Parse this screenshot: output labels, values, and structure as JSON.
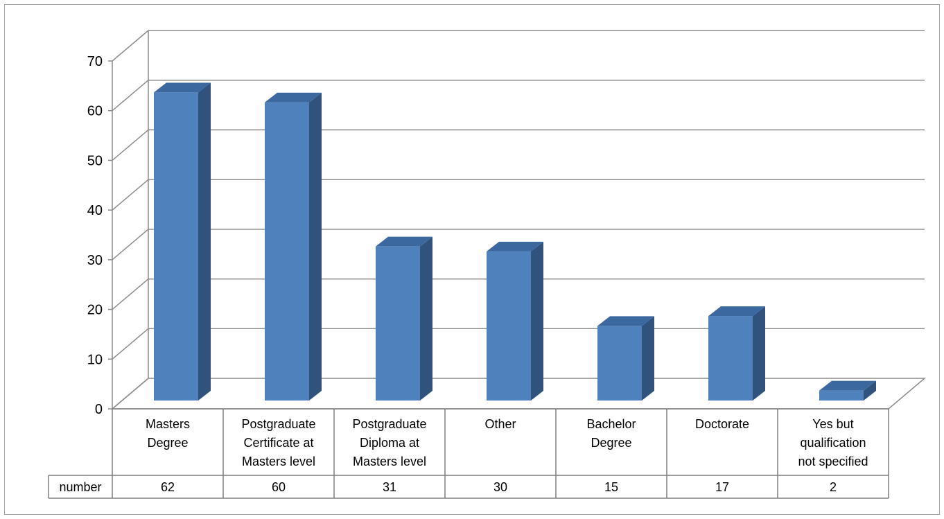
{
  "chart_data": {
    "type": "bar",
    "title": "",
    "xlabel": "",
    "ylabel": "",
    "ylim": [
      0,
      70
    ],
    "yticks": [
      0,
      10,
      20,
      30,
      40,
      50,
      60,
      70
    ],
    "grid": true,
    "data_table": true,
    "categories": [
      [
        "Masters",
        "Degree"
      ],
      [
        "Postgraduate",
        "Certificate at",
        "Masters level"
      ],
      [
        "Postgraduate",
        "Diploma at",
        "Masters level"
      ],
      [
        "Other"
      ],
      [
        "Bachelor",
        "Degree"
      ],
      [
        "Doctorate"
      ],
      [
        "Yes but",
        "qualification",
        "not specified"
      ]
    ],
    "series": [
      {
        "name": "number",
        "values": [
          62,
          60,
          31,
          30,
          15,
          17,
          2
        ]
      }
    ],
    "colors": {
      "bar_front": "#4f81bd",
      "bar_side": "#30527c",
      "bar_top": "#3c68a0",
      "grid": "#8c8c8c"
    }
  }
}
